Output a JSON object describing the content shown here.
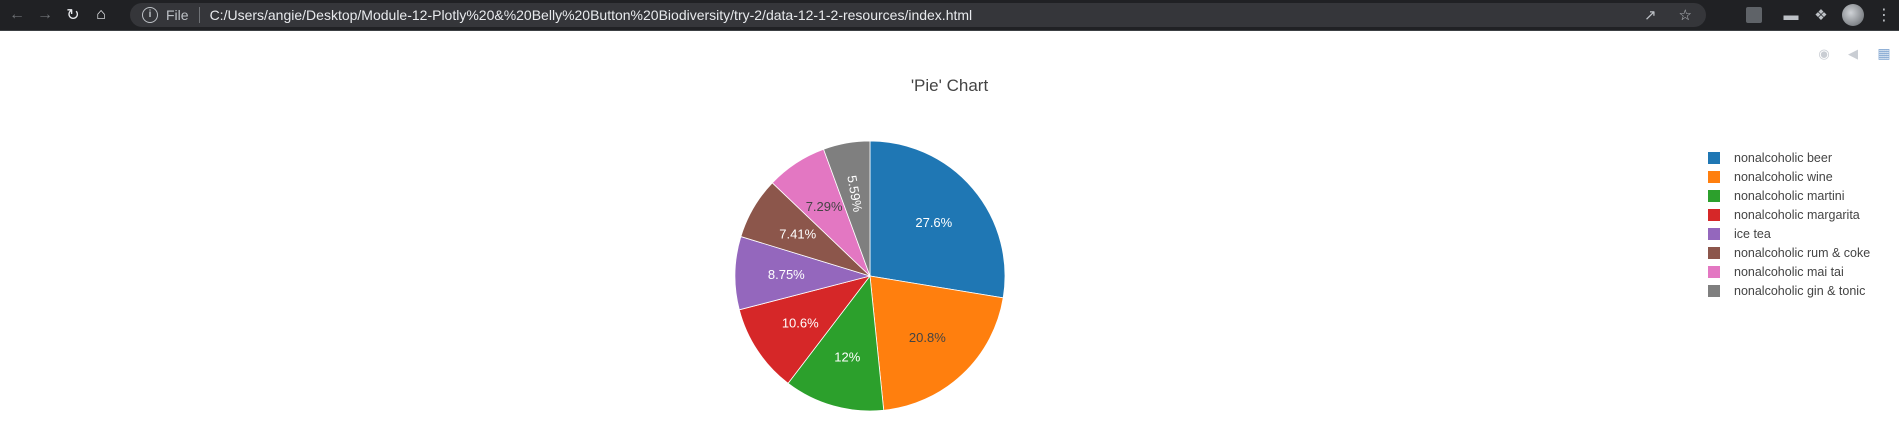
{
  "browser": {
    "file_label": "File",
    "url": "C:/Users/angie/Desktop/Module-12-Plotly%20&%20Belly%20Button%20Biodiversity/try-2/data-12-1-2-resources/index.html"
  },
  "chart_data": {
    "type": "pie",
    "title": "'Pie' Chart",
    "labels": [
      "nonalcoholic beer",
      "nonalcoholic wine",
      "nonalcoholic martini",
      "nonalcoholic margarita",
      "ice tea",
      "nonalcoholic rum & coke",
      "nonalcoholic mai tai",
      "nonalcoholic gin & tonic"
    ],
    "percent_labels": [
      "27.6%",
      "20.8%",
      "12%",
      "10.6%",
      "8.75%",
      "7.41%",
      "7.29%",
      "5.59%"
    ],
    "values": [
      27.6,
      20.8,
      12.0,
      10.6,
      8.75,
      7.41,
      7.29,
      5.59
    ],
    "colors": [
      "#1f77b4",
      "#ff7f0e",
      "#2ca02c",
      "#d62728",
      "#9467bd",
      "#8c564b",
      "#e377c2",
      "#7f7f7f"
    ],
    "label_colors": [
      "#ffffff",
      "#444444",
      "#ffffff",
      "#ffffff",
      "#ffffff",
      "#ffffff",
      "#444444",
      "#ffffff"
    ],
    "direction": "clockwise",
    "legend_position": "right"
  }
}
